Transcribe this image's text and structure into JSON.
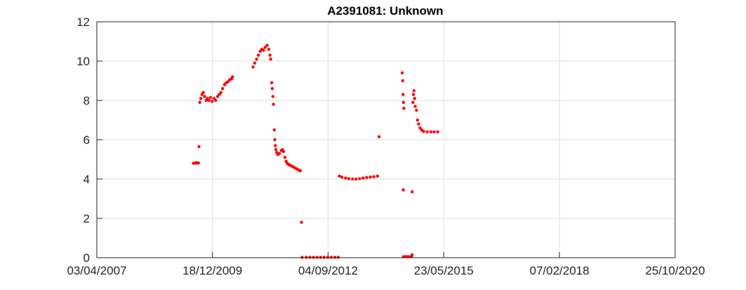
{
  "chart_data": {
    "type": "scatter",
    "title": "A2391081: Unknown",
    "xlabel": "",
    "ylabel": "",
    "x_ticks": [
      "03/04/2007",
      "18/12/2009",
      "04/09/2012",
      "23/05/2015",
      "07/02/2018",
      "25/10/2020"
    ],
    "y_ticks": [
      "0",
      "2",
      "4",
      "6",
      "8",
      "10",
      "12"
    ],
    "xlim": [
      "03/04/2007",
      "25/10/2020"
    ],
    "ylim": [
      0,
      12
    ],
    "grid": true,
    "legend": "none",
    "marker_color": "#ff0000",
    "series": [
      {
        "points": [
          [
            "08/07/2009",
            4.8
          ],
          [
            "20/07/2009",
            4.82
          ],
          [
            "01/08/2009",
            4.81
          ],
          [
            "10/08/2009",
            4.83
          ],
          [
            "20/08/2009",
            4.82
          ],
          [
            "25/08/2009",
            5.65
          ],
          [
            "01/09/2009",
            7.9
          ],
          [
            "10/09/2009",
            8.1
          ],
          [
            "20/09/2009",
            8.3
          ],
          [
            "01/10/2009",
            8.4
          ],
          [
            "12/10/2009",
            8.2
          ],
          [
            "25/10/2009",
            8.0
          ],
          [
            "05/11/2009",
            8.1
          ],
          [
            "18/11/2009",
            8.0
          ],
          [
            "01/12/2009",
            8.15
          ],
          [
            "15/12/2009",
            7.95
          ],
          [
            "01/01/2010",
            8.1
          ],
          [
            "15/01/2010",
            8.0
          ],
          [
            "01/02/2010",
            8.2
          ],
          [
            "15/02/2010",
            8.3
          ],
          [
            "01/03/2010",
            8.4
          ],
          [
            "15/03/2010",
            8.6
          ],
          [
            "01/04/2010",
            8.8
          ],
          [
            "15/04/2010",
            8.9
          ],
          [
            "01/05/2010",
            8.95
          ],
          [
            "15/05/2010",
            9.05
          ],
          [
            "01/06/2010",
            9.1
          ],
          [
            "08/06/2010",
            9.2
          ],
          [
            "01/12/2010",
            9.7
          ],
          [
            "15/12/2010",
            9.9
          ],
          [
            "01/01/2011",
            10.1
          ],
          [
            "15/01/2011",
            10.3
          ],
          [
            "01/02/2011",
            10.5
          ],
          [
            "15/02/2011",
            10.6
          ],
          [
            "01/03/2011",
            10.55
          ],
          [
            "15/03/2011",
            10.7
          ],
          [
            "01/04/2011",
            10.8
          ],
          [
            "15/04/2011",
            10.6
          ],
          [
            "25/04/2011",
            10.3
          ],
          [
            "01/05/2011",
            10.1
          ],
          [
            "10/05/2011",
            8.9
          ],
          [
            "15/05/2011",
            8.6
          ],
          [
            "20/05/2011",
            8.2
          ],
          [
            "25/05/2011",
            7.8
          ],
          [
            "01/06/2011",
            6.5
          ],
          [
            "05/06/2011",
            6.0
          ],
          [
            "10/06/2011",
            5.7
          ],
          [
            "15/06/2011",
            5.5
          ],
          [
            "22/06/2011",
            5.35
          ],
          [
            "01/07/2011",
            5.25
          ],
          [
            "15/07/2011",
            5.3
          ],
          [
            "01/08/2011",
            5.45
          ],
          [
            "10/08/2011",
            5.5
          ],
          [
            "20/08/2011",
            5.4
          ],
          [
            "01/09/2011",
            5.1
          ],
          [
            "10/09/2011",
            4.9
          ],
          [
            "20/09/2011",
            4.8
          ],
          [
            "01/10/2011",
            4.75
          ],
          [
            "15/10/2011",
            4.7
          ],
          [
            "01/11/2011",
            4.65
          ],
          [
            "15/11/2011",
            4.6
          ],
          [
            "01/12/2011",
            4.55
          ],
          [
            "15/12/2011",
            4.5
          ],
          [
            "01/01/2012",
            4.45
          ],
          [
            "10/01/2012",
            4.42
          ],
          [
            "20/01/2012",
            1.8
          ],
          [
            "25/01/2012",
            0.02
          ],
          [
            "01/03/2012",
            0.02
          ],
          [
            "01/04/2012",
            0.02
          ],
          [
            "01/05/2012",
            0.02
          ],
          [
            "01/06/2012",
            0.02
          ],
          [
            "01/07/2012",
            0.02
          ],
          [
            "01/08/2012",
            0.02
          ],
          [
            "01/09/2012",
            0.02
          ],
          [
            "01/10/2012",
            0.02
          ],
          [
            "01/11/2012",
            0.02
          ],
          [
            "30/11/2012",
            0.02
          ],
          [
            "10/12/2012",
            4.15
          ],
          [
            "01/01/2013",
            4.1
          ],
          [
            "01/02/2013",
            4.05
          ],
          [
            "01/03/2013",
            4.02
          ],
          [
            "01/04/2013",
            4.0
          ],
          [
            "01/05/2013",
            4.0
          ],
          [
            "01/06/2013",
            4.02
          ],
          [
            "01/07/2013",
            4.05
          ],
          [
            "01/08/2013",
            4.08
          ],
          [
            "01/09/2013",
            4.1
          ],
          [
            "01/10/2013",
            4.12
          ],
          [
            "01/11/2013",
            4.15
          ],
          [
            "15/11/2013",
            6.15
          ],
          [
            "01/06/2014",
            9.4
          ],
          [
            "05/06/2014",
            9.0
          ],
          [
            "08/06/2014",
            8.3
          ],
          [
            "12/06/2014",
            7.9
          ],
          [
            "15/06/2014",
            7.6
          ],
          [
            "10/06/2014",
            3.45
          ],
          [
            "12/06/2014",
            0.05
          ],
          [
            "01/07/2014",
            0.05
          ],
          [
            "15/07/2014",
            0.05
          ],
          [
            "01/08/2014",
            0.05
          ],
          [
            "20/08/2014",
            0.05
          ],
          [
            "25/08/2014",
            0.15
          ],
          [
            "25/08/2014",
            3.35
          ],
          [
            "01/09/2014",
            7.9
          ],
          [
            "05/09/2014",
            8.3
          ],
          [
            "10/09/2014",
            8.5
          ],
          [
            "15/09/2014",
            8.1
          ],
          [
            "20/09/2014",
            7.7
          ],
          [
            "01/10/2014",
            7.5
          ],
          [
            "10/10/2014",
            7.0
          ],
          [
            "20/10/2014",
            6.8
          ],
          [
            "01/11/2014",
            6.6
          ],
          [
            "15/11/2014",
            6.5
          ],
          [
            "01/12/2014",
            6.42
          ],
          [
            "01/01/2015",
            6.4
          ],
          [
            "01/02/2015",
            6.4
          ],
          [
            "01/03/2015",
            6.4
          ],
          [
            "01/04/2015",
            6.4
          ]
        ]
      }
    ]
  }
}
